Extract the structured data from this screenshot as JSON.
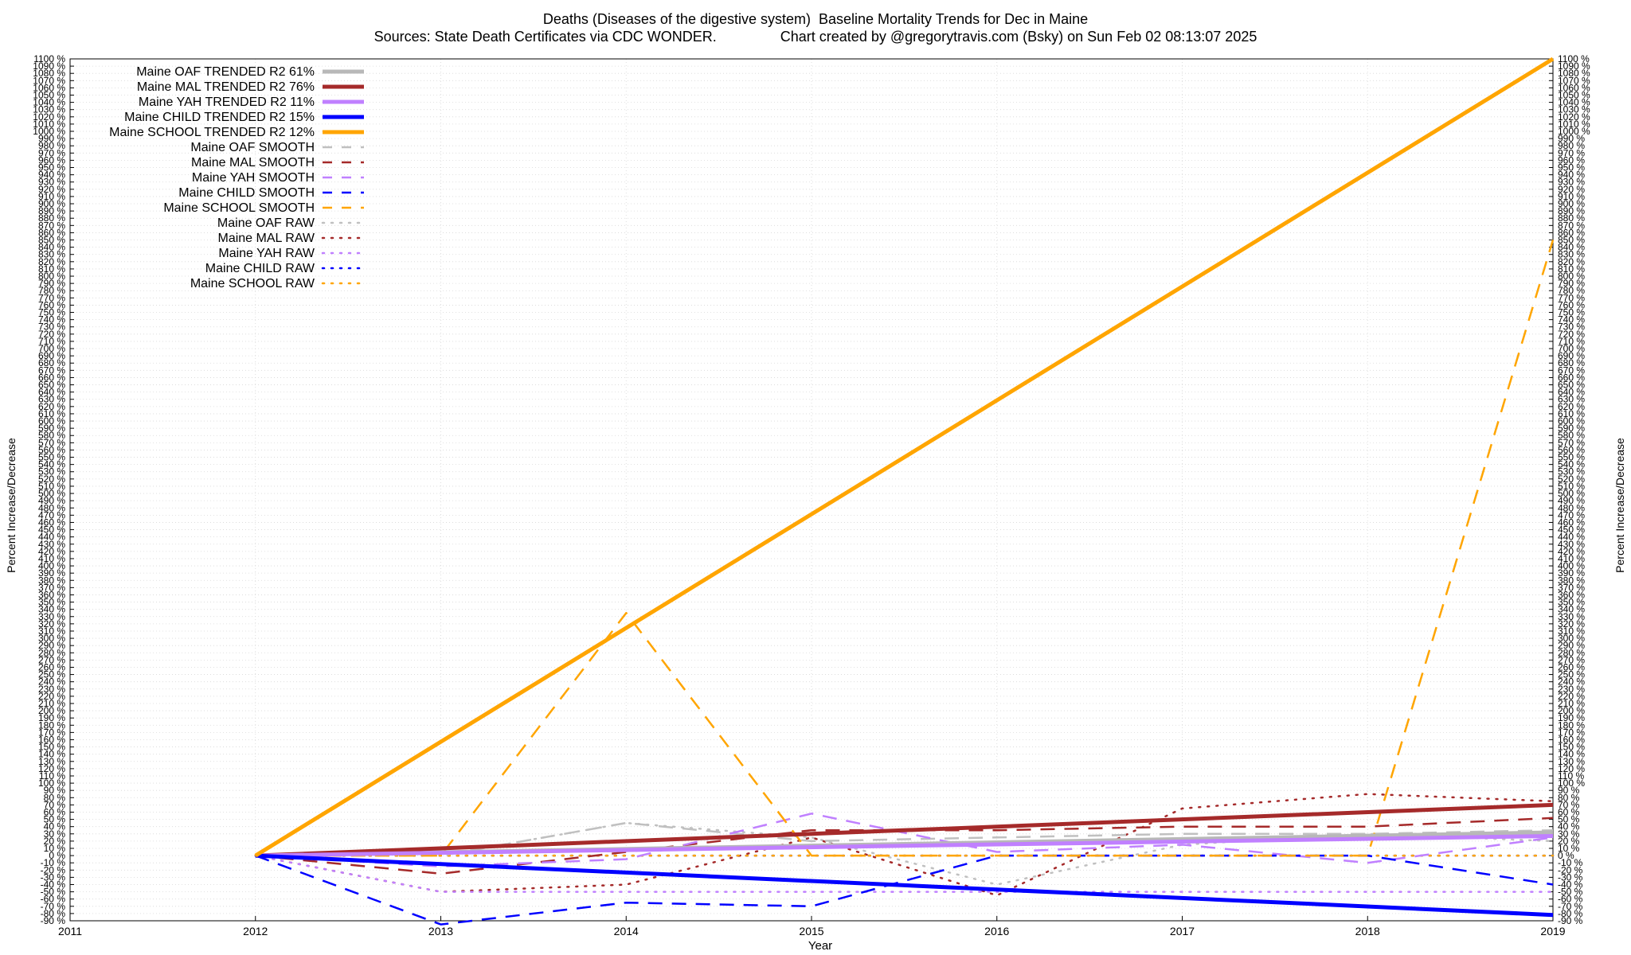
{
  "header": {
    "title_line1": "Deaths (Diseases of the digestive system)  Baseline Mortality Trends for Dec in Maine",
    "title_line2": "Sources: State Death Certificates via CDC WONDER.                Chart created by @gregorytravis.com (Bsky) on Sun Feb 02 08:13:07 2025"
  },
  "chart_data": {
    "type": "line",
    "title": "Deaths (Diseases of the digestive system)  Baseline Mortality Trends for Dec in Maine",
    "subtitle": "Sources: State Death Certificates via CDC WONDER.                Chart created by @gregorytravis.com (Bsky) on Sun Feb 02 08:13:07 2025",
    "xlabel": "Year",
    "ylabel_left": "Percent Increase/Decrease",
    "ylabel_right": "Percent Increase/Decrease",
    "xlim": [
      2011,
      2019
    ],
    "ylim": [
      -90,
      1100
    ],
    "y_tick_step": 10,
    "y_tick_suffix": " %",
    "x_ticks": [
      2011,
      2012,
      2013,
      2014,
      2015,
      2016,
      2017,
      2018,
      2019
    ],
    "grid": true,
    "legend_position": "top-left",
    "series": [
      {
        "name": "Maine OAF TRENDED R2  61%",
        "color": "#b8b8b8",
        "style": "solid",
        "width": 5,
        "x": [
          2012,
          2019
        ],
        "y": [
          0,
          32
        ]
      },
      {
        "name": "Maine MAL TRENDED R2  76%",
        "color": "#a52a2a",
        "style": "solid",
        "width": 5,
        "x": [
          2012,
          2019
        ],
        "y": [
          0,
          70
        ]
      },
      {
        "name": "Maine YAH TRENDED R2  11%",
        "color": "#c080ff",
        "style": "solid",
        "width": 5,
        "x": [
          2012,
          2019
        ],
        "y": [
          0,
          27
        ]
      },
      {
        "name": "Maine CHILD TRENDED R2  15%",
        "color": "#0000ff",
        "style": "solid",
        "width": 5,
        "x": [
          2012,
          2019
        ],
        "y": [
          0,
          -82
        ]
      },
      {
        "name": "Maine SCHOOL TRENDED R2  12%",
        "color": "#ffa500",
        "style": "solid",
        "width": 5,
        "x": [
          2012,
          2019
        ],
        "y": [
          0,
          1100
        ]
      },
      {
        "name": "Maine OAF SMOOTH",
        "color": "#c0c0c0",
        "style": "dashed",
        "width": 2.5,
        "x": [
          2012,
          2013,
          2014,
          2015,
          2016,
          2017,
          2018,
          2019
        ],
        "y": [
          0,
          0,
          45,
          20,
          25,
          30,
          30,
          35
        ]
      },
      {
        "name": "Maine MAL SMOOTH",
        "color": "#a52a2a",
        "style": "dashed",
        "width": 2.5,
        "x": [
          2012,
          2013,
          2014,
          2015,
          2016,
          2017,
          2018,
          2019
        ],
        "y": [
          0,
          -25,
          5,
          35,
          35,
          40,
          40,
          52
        ]
      },
      {
        "name": "Maine YAH SMOOTH",
        "color": "#c080ff",
        "style": "dashed",
        "width": 2.5,
        "x": [
          2012,
          2013,
          2014,
          2015,
          2016,
          2017,
          2018,
          2019
        ],
        "y": [
          0,
          -15,
          -5,
          58,
          5,
          15,
          -10,
          25
        ]
      },
      {
        "name": "Maine CHILD SMOOTH",
        "color": "#0000ff",
        "style": "dashed",
        "width": 2.5,
        "x": [
          2012,
          2013,
          2014,
          2015,
          2016,
          2017,
          2018,
          2019
        ],
        "y": [
          0,
          -95,
          -65,
          -70,
          0,
          0,
          0,
          -40
        ]
      },
      {
        "name": "Maine SCHOOL SMOOTH",
        "color": "#ffa500",
        "style": "dashed",
        "width": 2.5,
        "x": [
          2012,
          2013,
          2014,
          2015,
          2016,
          2017,
          2018,
          2019
        ],
        "y": [
          0,
          0,
          335,
          0,
          0,
          0,
          0,
          850
        ]
      },
      {
        "name": "Maine OAF RAW",
        "color": "#c0c0c0",
        "style": "dotted",
        "width": 2.5,
        "x": [
          2012,
          2013,
          2014,
          2015,
          2016,
          2017,
          2018,
          2019
        ],
        "y": [
          0,
          0,
          45,
          25,
          -40,
          15,
          30,
          20
        ]
      },
      {
        "name": "Maine MAL RAW",
        "color": "#a52a2a",
        "style": "dotted",
        "width": 2.5,
        "x": [
          2012,
          2013,
          2014,
          2015,
          2016,
          2017,
          2018,
          2019
        ],
        "y": [
          0,
          -50,
          -40,
          25,
          -55,
          65,
          85,
          75
        ]
      },
      {
        "name": "Maine YAH RAW",
        "color": "#c080ff",
        "style": "dotted",
        "width": 2.5,
        "x": [
          2012,
          2013,
          2014,
          2015,
          2016,
          2017,
          2018,
          2019
        ],
        "y": [
          0,
          -50,
          -50,
          -50,
          -50,
          -50,
          -50,
          -50
        ]
      },
      {
        "name": "Maine CHILD RAW",
        "color": "#0000ff",
        "style": "dotted",
        "width": 2.5,
        "x": [
          2012,
          2013,
          2014,
          2015,
          2016,
          2017,
          2018,
          2019
        ],
        "y": [
          0,
          0,
          0,
          0,
          0,
          0,
          0,
          0
        ]
      },
      {
        "name": "Maine SCHOOL RAW",
        "color": "#ffa500",
        "style": "dotted",
        "width": 2.5,
        "x": [
          2012,
          2013,
          2014,
          2015,
          2016,
          2017,
          2018,
          2019
        ],
        "y": [
          0,
          0,
          0,
          0,
          0,
          0,
          0,
          0
        ]
      }
    ]
  }
}
